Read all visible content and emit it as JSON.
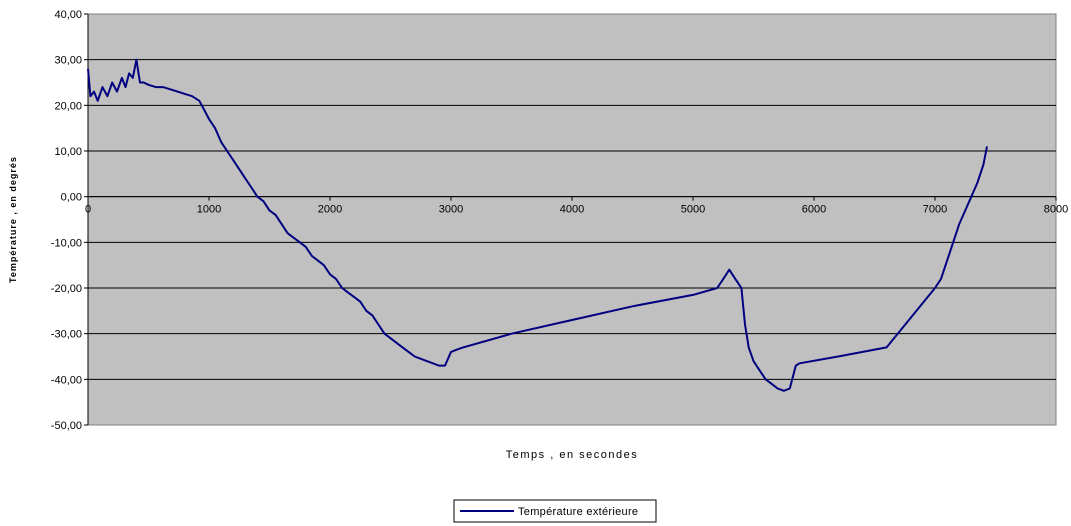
{
  "chart_data": {
    "type": "line",
    "title": "",
    "xlabel": "Temps , en secondes",
    "ylabel": "Température , en degrés",
    "xlim": [
      0,
      8000
    ],
    "ylim": [
      -50,
      40
    ],
    "x_ticks": [
      0,
      1000,
      2000,
      3000,
      4000,
      5000,
      6000,
      7000,
      8000
    ],
    "x_tick_labels": [
      "0",
      "1000",
      "2000",
      "3000",
      "4000",
      "5000",
      "6000",
      "7000",
      "8000"
    ],
    "y_ticks": [
      40,
      30,
      20,
      10,
      0,
      -10,
      -20,
      -30,
      -40,
      -50
    ],
    "y_tick_labels": [
      "40,00",
      "30,00",
      "20,00",
      "10,00",
      "0,00",
      "-10,00",
      "-20,00",
      "-30,00",
      "-40,00",
      "-50,00"
    ],
    "grid": true,
    "legend_position": "bottom",
    "plot_background": "#c0c0c0",
    "series_color": "#000080",
    "series": [
      {
        "name": "Température extérieure",
        "x": [
          0,
          20,
          50,
          80,
          120,
          160,
          200,
          240,
          280,
          310,
          340,
          370,
          400,
          430,
          460,
          500,
          560,
          620,
          680,
          740,
          800,
          860,
          920,
          960,
          1000,
          1050,
          1100,
          1150,
          1200,
          1250,
          1300,
          1350,
          1400,
          1450,
          1500,
          1550,
          1600,
          1650,
          1700,
          1750,
          1800,
          1850,
          1900,
          1950,
          2000,
          2050,
          2100,
          2150,
          2200,
          2250,
          2300,
          2350,
          2400,
          2450,
          2500,
          2550,
          2600,
          2650,
          2700,
          2750,
          2800,
          2850,
          2900,
          2950,
          3000,
          3050,
          3100,
          3500,
          4000,
          4500,
          5000,
          5200,
          5250,
          5300,
          5350,
          5400,
          5430,
          5460,
          5500,
          5550,
          5600,
          5650,
          5700,
          5750,
          5800,
          5850,
          5880,
          6200,
          6600,
          7000,
          7050,
          7100,
          7150,
          7200,
          7250,
          7300,
          7350,
          7400,
          7430
        ],
        "y": [
          28,
          22,
          23,
          21,
          24,
          22,
          25,
          23,
          26,
          24,
          27,
          26,
          30,
          25,
          25,
          24.5,
          24,
          24,
          23.5,
          23,
          22.5,
          22,
          21,
          19,
          17,
          15,
          12,
          10,
          8,
          6,
          4,
          2,
          0,
          -1,
          -3,
          -4,
          -6,
          -8,
          -9,
          -10,
          -11,
          -13,
          -14,
          -15,
          -17,
          -18,
          -20,
          -21,
          -22,
          -23,
          -25,
          -26,
          -28,
          -30,
          -31,
          -32,
          -33,
          -34,
          -35,
          -35.5,
          -36,
          -36.5,
          -37,
          -37,
          -34,
          -33.5,
          -33,
          -30,
          -27,
          -24,
          -21.5,
          -20,
          -18,
          -16,
          -18,
          -20,
          -28,
          -33,
          -36,
          -38,
          -40,
          -41,
          -42,
          -42.5,
          -42,
          -37,
          -36.5,
          -35,
          -33,
          -20,
          -18,
          -14,
          -10,
          -6,
          -3,
          0,
          3,
          7,
          11
        ]
      }
    ]
  }
}
